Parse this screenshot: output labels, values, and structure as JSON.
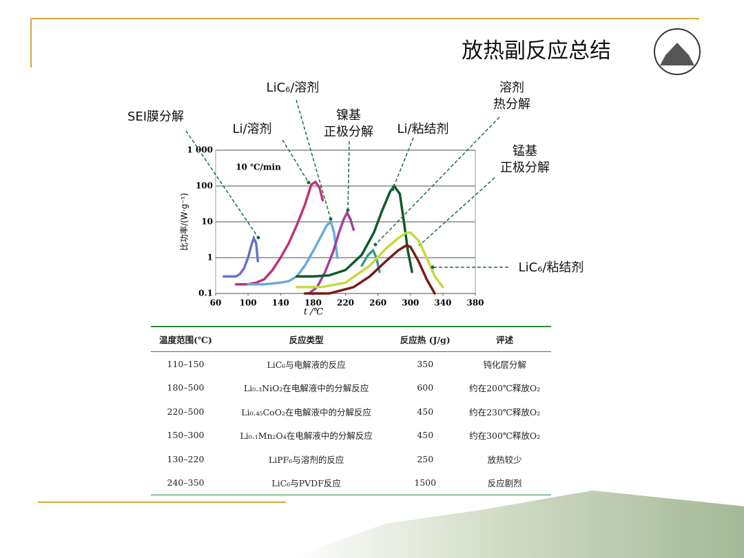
{
  "header": {
    "title": "放热副反应总结"
  },
  "chart_data": {
    "type": "line",
    "y_label": "比功率/(W·g⁻¹)",
    "x_label": "t /℃",
    "annotation": "10 ℃/min",
    "xlim": [
      60,
      380
    ],
    "xticks": [
      60,
      100,
      140,
      180,
      220,
      260,
      300,
      340,
      380
    ],
    "ylim": [
      0.1,
      1000
    ],
    "yscale": "log",
    "grid": true,
    "yticks": [
      0.1,
      1,
      10,
      100,
      {
        "value": 1000,
        "label": "1 000"
      }
    ],
    "series": [
      {
        "name": "SEI膜分解",
        "color": "#6a70c8",
        "x": [
          70,
          72,
          80,
          85,
          90,
          95,
          100,
          104,
          107,
          110,
          112
        ],
        "values": [
          0.3,
          0.3,
          0.3,
          0.3,
          0.35,
          0.5,
          1.0,
          2.2,
          3.5,
          2.5,
          0.8
        ]
      },
      {
        "name": "Li/溶剂",
        "color": "#c0307a",
        "x": [
          85,
          100,
          110,
          120,
          130,
          140,
          150,
          160,
          170,
          178,
          183,
          188,
          192
        ],
        "values": [
          0.18,
          0.18,
          0.2,
          0.25,
          0.45,
          1,
          2.5,
          8,
          30,
          110,
          130,
          90,
          40
        ]
      },
      {
        "name": "LiC₆/溶剂",
        "color": "#6aa8e0",
        "x": [
          100,
          120,
          140,
          150,
          160,
          170,
          180,
          190,
          197,
          202,
          206,
          210
        ],
        "values": [
          0.18,
          0.18,
          0.2,
          0.22,
          0.3,
          0.6,
          1.5,
          4,
          8,
          10,
          5,
          1
        ]
      },
      {
        "name": "镍基\n正极分解",
        "color": "#a040a0",
        "x": [
          175,
          185,
          195,
          205,
          212,
          218,
          222,
          226,
          230
        ],
        "values": [
          0.1,
          0.15,
          0.4,
          1.5,
          5,
          12,
          18,
          12,
          6
        ]
      },
      {
        "name": "Li/粘结剂",
        "color": "#0a5a2a",
        "x": [
          160,
          180,
          200,
          220,
          240,
          255,
          265,
          275,
          280,
          287,
          292,
          297,
          302
        ],
        "values": [
          0.3,
          0.3,
          0.32,
          0.45,
          1.2,
          5,
          20,
          70,
          100,
          60,
          10,
          1.5,
          0.4
        ]
      },
      {
        "name": "溶剂\n热分解",
        "color": "#3a9a8a",
        "x": [
          240,
          248,
          254,
          258,
          262
        ],
        "values": [
          0.6,
          1.2,
          1.6,
          1,
          0.4
        ]
      },
      {
        "name": "锰基\n正极分解",
        "color": "#7a1a1a",
        "x": [
          170,
          200,
          230,
          250,
          270,
          285,
          295,
          300,
          310,
          320,
          330
        ],
        "values": [
          0.1,
          0.1,
          0.15,
          0.3,
          0.8,
          1.6,
          2.2,
          2,
          0.8,
          0.25,
          0.1
        ]
      },
      {
        "name": "LiC₆/粘结剂",
        "color": "#c8d83c",
        "x": [
          160,
          190,
          220,
          250,
          270,
          285,
          295,
          300,
          310,
          320,
          330,
          340
        ],
        "values": [
          0.15,
          0.15,
          0.2,
          0.6,
          1.8,
          3.5,
          5,
          5,
          3,
          1,
          0.3,
          0.15
        ]
      }
    ]
  },
  "table": {
    "header": [
      "温度范围(℃)",
      "反应类型",
      "反应热 (J/g)",
      "评述"
    ],
    "rows": [
      [
        "110–150",
        "LiC₆与电解液的反应",
        350,
        "钝化层分解"
      ],
      [
        "180–500",
        "Li₀.₃NiO₂在电解液中的分解反应",
        600,
        "约在200℃释放O₂"
      ],
      [
        "220–500",
        "Li₀.₄₅CoO₂在电解液中的分解反应",
        450,
        "约在230℃释放O₂"
      ],
      [
        "150–300",
        "Li₀.₁Mn₂O₄在电解液中的分解反应",
        450,
        "约在300℃释放O₂"
      ],
      [
        "130–220",
        "LiPF₆与溶剂的反应",
        250,
        "放热较少"
      ],
      [
        "240–350",
        "LiC₆与PVDF反应",
        1500,
        "反应剧烈"
      ]
    ]
  }
}
